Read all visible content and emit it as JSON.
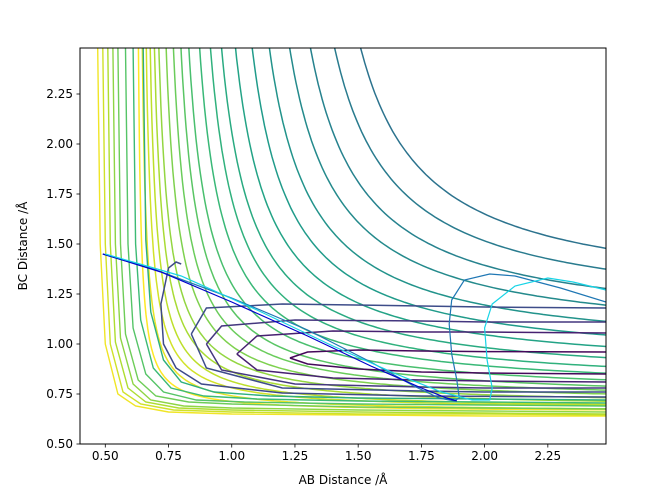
{
  "chart_data": {
    "type": "contour",
    "title": "",
    "xlabel": "AB Distance /Å",
    "ylabel": "BC Distance /Å",
    "xlim": [
      0.4,
      2.48
    ],
    "ylim": [
      0.5,
      2.48
    ],
    "xticks": [
      0.5,
      0.75,
      1.0,
      1.25,
      1.5,
      1.75,
      2.0,
      2.25
    ],
    "xtick_labels": [
      "0.50",
      "0.75",
      "1.00",
      "1.25",
      "1.50",
      "1.75",
      "2.00",
      "2.25"
    ],
    "yticks": [
      0.5,
      0.75,
      1.0,
      1.25,
      1.5,
      1.75,
      2.0,
      2.25
    ],
    "ytick_labels": [
      "0.50",
      "0.75",
      "1.00",
      "1.25",
      "1.50",
      "1.75",
      "2.00",
      "2.25"
    ],
    "grid": false,
    "legend": "none",
    "colormap": "viridis",
    "contour_levels": [
      {
        "asym_x": 0.62,
        "asym_y": 0.66,
        "k": 0.02
      },
      {
        "asym_x": 0.63,
        "asym_y": 0.66,
        "k": 0.03
      },
      {
        "asym_x": 0.64,
        "asym_y": 0.67,
        "k": 0.04
      },
      {
        "asym_x": 0.65,
        "asym_y": 0.67,
        "k": 0.05
      },
      {
        "asym_x": 0.66,
        "asym_y": 0.68,
        "k": 0.062
      },
      {
        "asym_x": 0.67,
        "asym_y": 0.69,
        "k": 0.075
      },
      {
        "asym_x": 0.69,
        "asym_y": 0.7,
        "k": 0.09
      },
      {
        "asym_x": 0.71,
        "asym_y": 0.71,
        "k": 0.105
      },
      {
        "asym_x": 0.73,
        "asym_y": 0.72,
        "k": 0.122
      },
      {
        "asym_x": 0.75,
        "asym_y": 0.74,
        "k": 0.14
      },
      {
        "asym_x": 0.78,
        "asym_y": 0.76,
        "k": 0.16
      },
      {
        "asym_x": 0.81,
        "asym_y": 0.78,
        "k": 0.18
      },
      {
        "asym_x": 0.84,
        "asym_y": 0.81,
        "k": 0.2
      },
      {
        "asym_x": 0.88,
        "asym_y": 0.85,
        "k": 0.22
      },
      {
        "asym_x": 0.93,
        "asym_y": 0.89,
        "k": 0.24
      },
      {
        "asym_x": 0.98,
        "asym_y": 0.94,
        "k": 0.26
      },
      {
        "asym_x": 1.04,
        "asym_y": 1.0,
        "k": 0.28
      },
      {
        "asym_x": 1.1,
        "asym_y": 1.06,
        "k": 0.3
      },
      {
        "asym_x": 1.17,
        "asym_y": 1.13,
        "k": 0.32
      },
      {
        "asym_x": 1.25,
        "asym_y": 1.21,
        "k": 0.33
      }
    ],
    "outer_contours": [
      {
        "x": [
          0.47,
          0.48,
          0.5,
          0.55,
          0.62,
          0.75,
          1.0,
          1.5,
          2.0,
          2.48
        ],
        "y": [
          2.48,
          1.5,
          1.0,
          0.75,
          0.69,
          0.66,
          0.65,
          0.645,
          0.64,
          0.64
        ]
      },
      {
        "x": [
          0.49,
          0.5,
          0.52,
          0.57,
          0.64,
          0.77,
          1.0,
          1.5,
          2.0,
          2.48
        ],
        "y": [
          2.48,
          1.5,
          1.0,
          0.76,
          0.7,
          0.67,
          0.66,
          0.65,
          0.65,
          0.645
        ]
      },
      {
        "x": [
          0.51,
          0.52,
          0.54,
          0.59,
          0.66,
          0.79,
          1.0,
          1.5,
          2.0,
          2.48
        ],
        "y": [
          2.48,
          1.5,
          1.01,
          0.78,
          0.71,
          0.68,
          0.67,
          0.66,
          0.655,
          0.65
        ]
      },
      {
        "x": [
          0.53,
          0.54,
          0.56,
          0.61,
          0.68,
          0.81,
          1.0,
          1.5,
          2.0,
          2.48
        ],
        "y": [
          2.48,
          1.5,
          1.03,
          0.8,
          0.72,
          0.69,
          0.68,
          0.67,
          0.665,
          0.66
        ]
      },
      {
        "x": [
          0.55,
          0.56,
          0.58,
          0.63,
          0.7,
          0.83,
          1.0,
          1.5,
          2.0,
          2.48
        ],
        "y": [
          2.48,
          1.5,
          1.05,
          0.82,
          0.74,
          0.71,
          0.7,
          0.685,
          0.68,
          0.675
        ]
      },
      {
        "x": [
          0.58,
          0.59,
          0.61,
          0.66,
          0.73,
          0.86,
          1.05,
          1.5,
          2.0,
          2.48
        ],
        "y": [
          2.48,
          1.5,
          1.08,
          0.85,
          0.76,
          0.72,
          0.71,
          0.7,
          0.695,
          0.69
        ]
      },
      {
        "x": [
          0.61,
          0.62,
          0.64,
          0.69,
          0.76,
          0.89,
          1.1,
          1.5,
          2.0,
          2.48
        ],
        "y": [
          2.48,
          1.5,
          1.12,
          0.88,
          0.78,
          0.74,
          0.725,
          0.715,
          0.71,
          0.705
        ]
      },
      {
        "x": [
          0.65,
          0.66,
          0.68,
          0.73,
          0.8,
          0.93,
          1.15,
          1.5,
          2.0,
          2.48
        ],
        "y": [
          2.48,
          1.52,
          1.16,
          0.92,
          0.81,
          0.76,
          0.74,
          0.73,
          0.725,
          0.72
        ]
      }
    ],
    "well_contours": [
      {
        "x": [
          1.23,
          1.3,
          1.5,
          1.75,
          2.0,
          2.48
        ],
        "y": [
          0.93,
          0.9,
          0.875,
          0.86,
          0.855,
          0.85
        ],
        "x2": [
          1.23,
          1.3,
          1.5,
          1.75,
          2.0,
          2.48
        ],
        "y2": [
          0.93,
          0.96,
          0.97,
          0.965,
          0.962,
          0.96
        ]
      },
      {
        "x": [
          1.02,
          1.1,
          1.4,
          1.75,
          2.0,
          2.48
        ],
        "y": [
          0.95,
          0.87,
          0.83,
          0.82,
          0.815,
          0.81
        ],
        "x2": [
          1.02,
          1.1,
          1.4,
          1.75,
          2.0,
          2.48
        ],
        "y2": [
          0.95,
          1.04,
          1.065,
          1.06,
          1.06,
          1.055
        ]
      },
      {
        "x": [
          0.9,
          0.96,
          1.25,
          1.75,
          2.0,
          2.48
        ],
        "y": [
          1.0,
          0.87,
          0.8,
          0.785,
          0.78,
          0.78
        ],
        "x2": [
          0.9,
          0.96,
          1.25,
          1.75,
          2.0,
          2.48
        ],
        "y2": [
          1.0,
          1.09,
          1.12,
          1.115,
          1.11,
          1.11
        ]
      },
      {
        "x": [
          0.84,
          0.9,
          1.2,
          1.75,
          2.0,
          2.48
        ],
        "y": [
          1.05,
          0.88,
          0.78,
          0.765,
          0.76,
          0.76
        ],
        "x2": [
          0.84,
          0.9,
          1.2,
          1.75,
          2.0,
          2.48
        ],
        "y2": [
          1.05,
          1.18,
          1.2,
          1.19,
          1.185,
          1.18
        ]
      }
    ],
    "saddle_contour": {
      "x": [
        0.8,
        0.78,
        0.75,
        0.72,
        0.73,
        0.78,
        0.88,
        1.2,
        1.75,
        2.48
      ],
      "y": [
        1.4,
        1.41,
        1.38,
        1.2,
        1.0,
        0.88,
        0.8,
        0.755,
        0.74,
        0.735
      ]
    },
    "series": [
      {
        "color": "#1f77b4",
        "x": [
          0.49,
          0.7,
          1.0,
          1.3,
          1.55,
          1.72,
          1.82,
          1.88,
          1.9,
          1.89,
          1.87,
          1.86,
          1.87,
          1.92,
          2.02,
          2.12,
          2.3,
          2.48
        ],
        "y": [
          1.45,
          1.37,
          1.23,
          1.07,
          0.91,
          0.79,
          0.73,
          0.715,
          0.73,
          0.82,
          0.95,
          1.1,
          1.22,
          1.32,
          1.35,
          1.34,
          1.28,
          1.21
        ]
      },
      {
        "color": "#0000cc",
        "x": [
          0.49,
          0.72,
          1.0,
          1.3,
          1.55,
          1.75,
          1.85,
          1.89
        ],
        "y": [
          1.45,
          1.36,
          1.21,
          1.04,
          0.89,
          0.78,
          0.73,
          0.715
        ]
      },
      {
        "color": "#17d4e6",
        "x": [
          0.5,
          0.8,
          1.1,
          1.4,
          1.65,
          1.83,
          1.95,
          2.02,
          2.03,
          2.01,
          2.0,
          2.03,
          2.12,
          2.25,
          2.35,
          2.48
        ],
        "y": [
          1.45,
          1.34,
          1.17,
          0.99,
          0.85,
          0.76,
          0.72,
          0.72,
          0.78,
          0.92,
          1.08,
          1.2,
          1.29,
          1.33,
          1.31,
          1.27
        ]
      }
    ]
  }
}
